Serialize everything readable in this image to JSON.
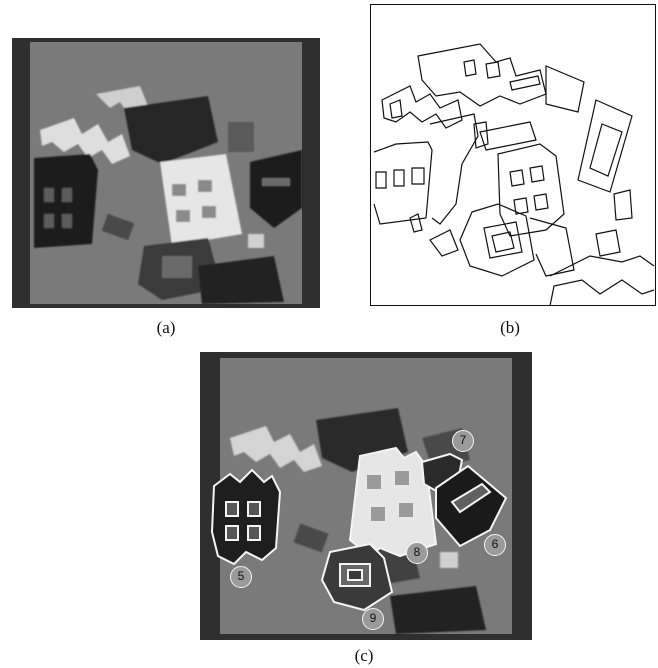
{
  "figure": {
    "panels": [
      {
        "id": "a",
        "caption": "(a)"
      },
      {
        "id": "b",
        "caption": "(b)"
      },
      {
        "id": "c",
        "caption": "(c)"
      }
    ],
    "markers": [
      "5",
      "6",
      "7",
      "8",
      "9"
    ],
    "colors": {
      "photo_bg": "#777777",
      "photo_border": "#2f2f2f",
      "line": "#111111",
      "highlight": "#f4f4f4"
    }
  }
}
